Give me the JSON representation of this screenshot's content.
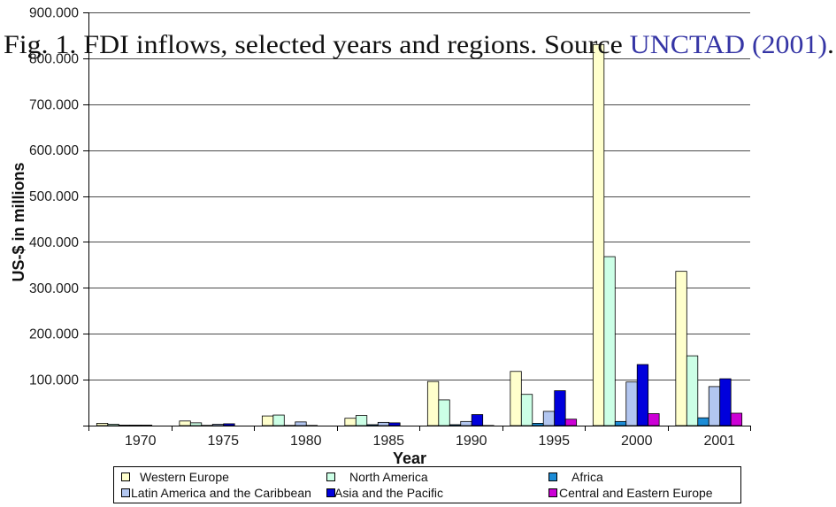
{
  "caption": {
    "prefix": "Fig. 1. FDI inflows, selected years and regions. Source ",
    "link": "UNCTAD (2001)",
    "suffix": ".",
    "link_color": "#3535A5"
  },
  "chart_data": {
    "type": "bar",
    "xlabel": "Year",
    "ylabel": "US-$ in millions",
    "categories": [
      "1970",
      "1975",
      "1980",
      "1985",
      "1990",
      "1995",
      "2000",
      "2001"
    ],
    "ylim": [
      0,
      900000
    ],
    "yticks": [
      100000,
      200000,
      300000,
      400000,
      500000,
      600000,
      700000,
      800000,
      900000
    ],
    "ytick_labels": [
      "100.000",
      "200.000",
      "300.000",
      "400.000",
      "500.000",
      "600.000",
      "700.000",
      "800.000",
      "900.000"
    ],
    "grid": true,
    "legend_position": "bottom",
    "series": [
      {
        "name": "Western Europe",
        "color": "#FFFFCC",
        "values": [
          5000,
          10000,
          21000,
          16000,
          96000,
          118000,
          830000,
          336000
        ]
      },
      {
        "name": "North America",
        "color": "#CCFFE6",
        "values": [
          3000,
          6000,
          23000,
          22000,
          56000,
          68000,
          368000,
          152000
        ]
      },
      {
        "name": "Africa",
        "color": "#1C8CD6",
        "values": [
          1000,
          500,
          400,
          2000,
          2000,
          5000,
          9000,
          17000
        ]
      },
      {
        "name": "Latin America and the Caribbean",
        "color": "#B2C6F0",
        "values": [
          1000,
          3000,
          8000,
          7000,
          9000,
          31000,
          95000,
          85000
        ]
      },
      {
        "name": "Asia and the Pacific",
        "color": "#0000DC",
        "values": [
          1000,
          4000,
          400,
          6000,
          24000,
          76000,
          133000,
          102000
        ]
      },
      {
        "name": "Central and Eastern Europe",
        "color": "#CC00D6",
        "values": [
          0,
          0,
          0,
          0,
          300,
          14000,
          26000,
          27000
        ]
      }
    ]
  }
}
